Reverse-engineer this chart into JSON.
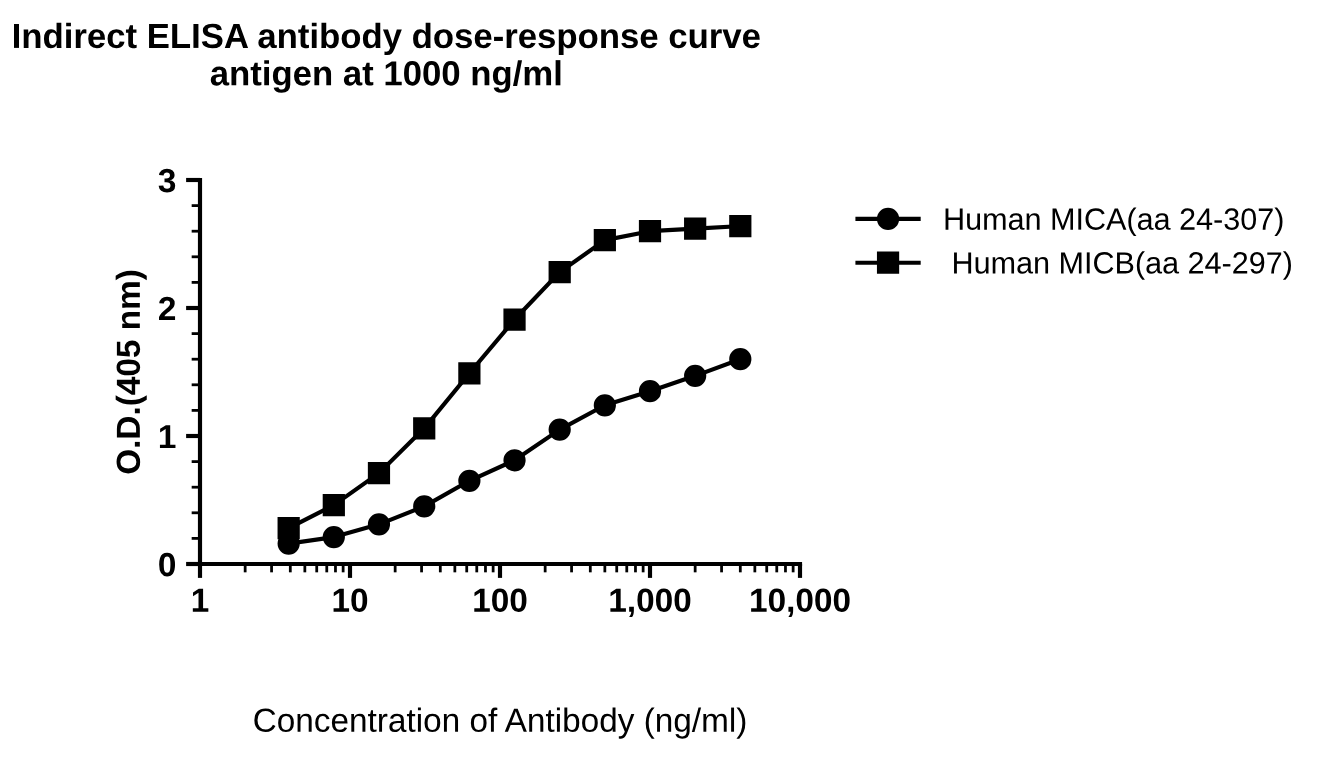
{
  "chart_data": {
    "type": "line",
    "title": "Indirect ELISA antibody dose-response curve\nantigen at 1000 ng/ml",
    "xlabel": "Concentration of Antibody (ng/ml)",
    "ylabel": "O.D.(405 nm)",
    "x": [
      3.9,
      7.8,
      15.6,
      31.25,
      62.5,
      125,
      250,
      500,
      1000,
      2000,
      4000
    ],
    "series": [
      {
        "name": "Human MICA(aa 24-307)",
        "color": "#000000",
        "marker": "circle",
        "values": [
          0.16,
          0.21,
          0.31,
          0.45,
          0.65,
          0.81,
          1.05,
          1.24,
          1.35,
          1.47,
          1.6
        ]
      },
      {
        "name": " Human MICB(aa 24-297)",
        "color": "#000000",
        "marker": "square",
        "values": [
          0.28,
          0.46,
          0.71,
          1.06,
          1.49,
          1.91,
          2.28,
          2.53,
          2.6,
          2.62,
          2.64
        ]
      }
    ],
    "log": "x",
    "xlim": [
      1,
      10000
    ],
    "xticks": [
      1,
      10,
      100,
      {
        "value": 1000,
        "label": "1,000"
      },
      {
        "value": 10000,
        "label": "10,000"
      }
    ],
    "ylim": [
      0,
      3
    ],
    "yticks": [
      0,
      1,
      2,
      3
    ],
    "grid": false,
    "legend": "top right",
    "line_style": "solid"
  }
}
